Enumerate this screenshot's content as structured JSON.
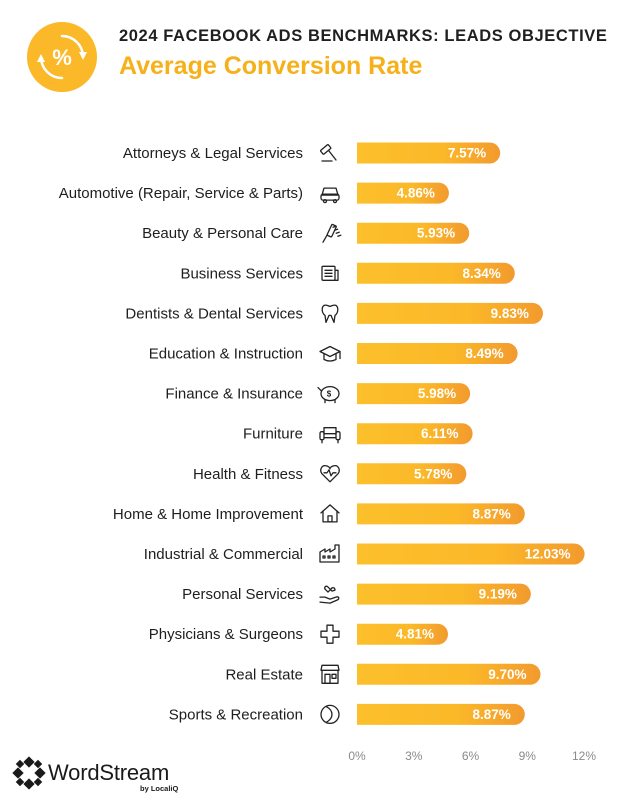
{
  "header": {
    "badge_symbol": "%",
    "title": "2024 FACEBOOK ADS BENCHMARKS: LEADS OBJECTIVE",
    "subtitle": "Average Conversion Rate"
  },
  "colors": {
    "accent": "#fbb828",
    "bar_start": "#fcc02c",
    "bar_end": "#f29a2e",
    "title_text": "#1f1f1f",
    "subtitle_text": "#f5b01a",
    "tick_text": "#8a8a8a"
  },
  "chart_data": {
    "type": "bar",
    "orientation": "horizontal",
    "categories": [
      "Attorneys & Legal Services",
      "Automotive (Repair, Service & Parts)",
      "Beauty & Personal Care",
      "Business Services",
      "Dentists & Dental Services",
      "Education & Instruction",
      "Finance & Insurance",
      "Furniture",
      "Health & Fitness",
      "Home & Home Improvement",
      "Industrial & Commercial",
      "Personal Services",
      "Physicians & Surgeons",
      "Real Estate",
      "Sports & Recreation"
    ],
    "icons": [
      "gavel-icon",
      "car-icon",
      "comb-icon",
      "newspaper-icon",
      "tooth-icon",
      "graduation-cap-icon",
      "piggy-bank-icon",
      "armchair-icon",
      "heart-pulse-icon",
      "house-icon",
      "factory-icon",
      "hand-heart-icon",
      "medical-cross-icon",
      "storefront-icon",
      "ball-icon"
    ],
    "values": [
      7.57,
      4.86,
      5.93,
      8.34,
      9.83,
      8.49,
      5.98,
      6.11,
      5.78,
      8.87,
      12.03,
      9.19,
      4.81,
      9.7,
      8.87
    ],
    "labels": [
      "7.57%",
      "4.86%",
      "5.93%",
      "8.34%",
      "9.83%",
      "8.49%",
      "5.98%",
      "6.11%",
      "5.78%",
      "8.87%",
      "12.03%",
      "9.19%",
      "4.81%",
      "9.70%",
      "8.87%"
    ],
    "xlim": [
      0,
      12
    ],
    "xticks": [
      "0%",
      "3%",
      "6%",
      "9%",
      "12%"
    ],
    "xtick_values": [
      0,
      3,
      6,
      9,
      12
    ],
    "grid": false,
    "title": "2024 FACEBOOK ADS BENCHMARKS: LEADS OBJECTIVE",
    "subtitle": "Average Conversion Rate"
  },
  "footer": {
    "brand": "WordStream",
    "brand_sub": "by LocaliQ"
  }
}
